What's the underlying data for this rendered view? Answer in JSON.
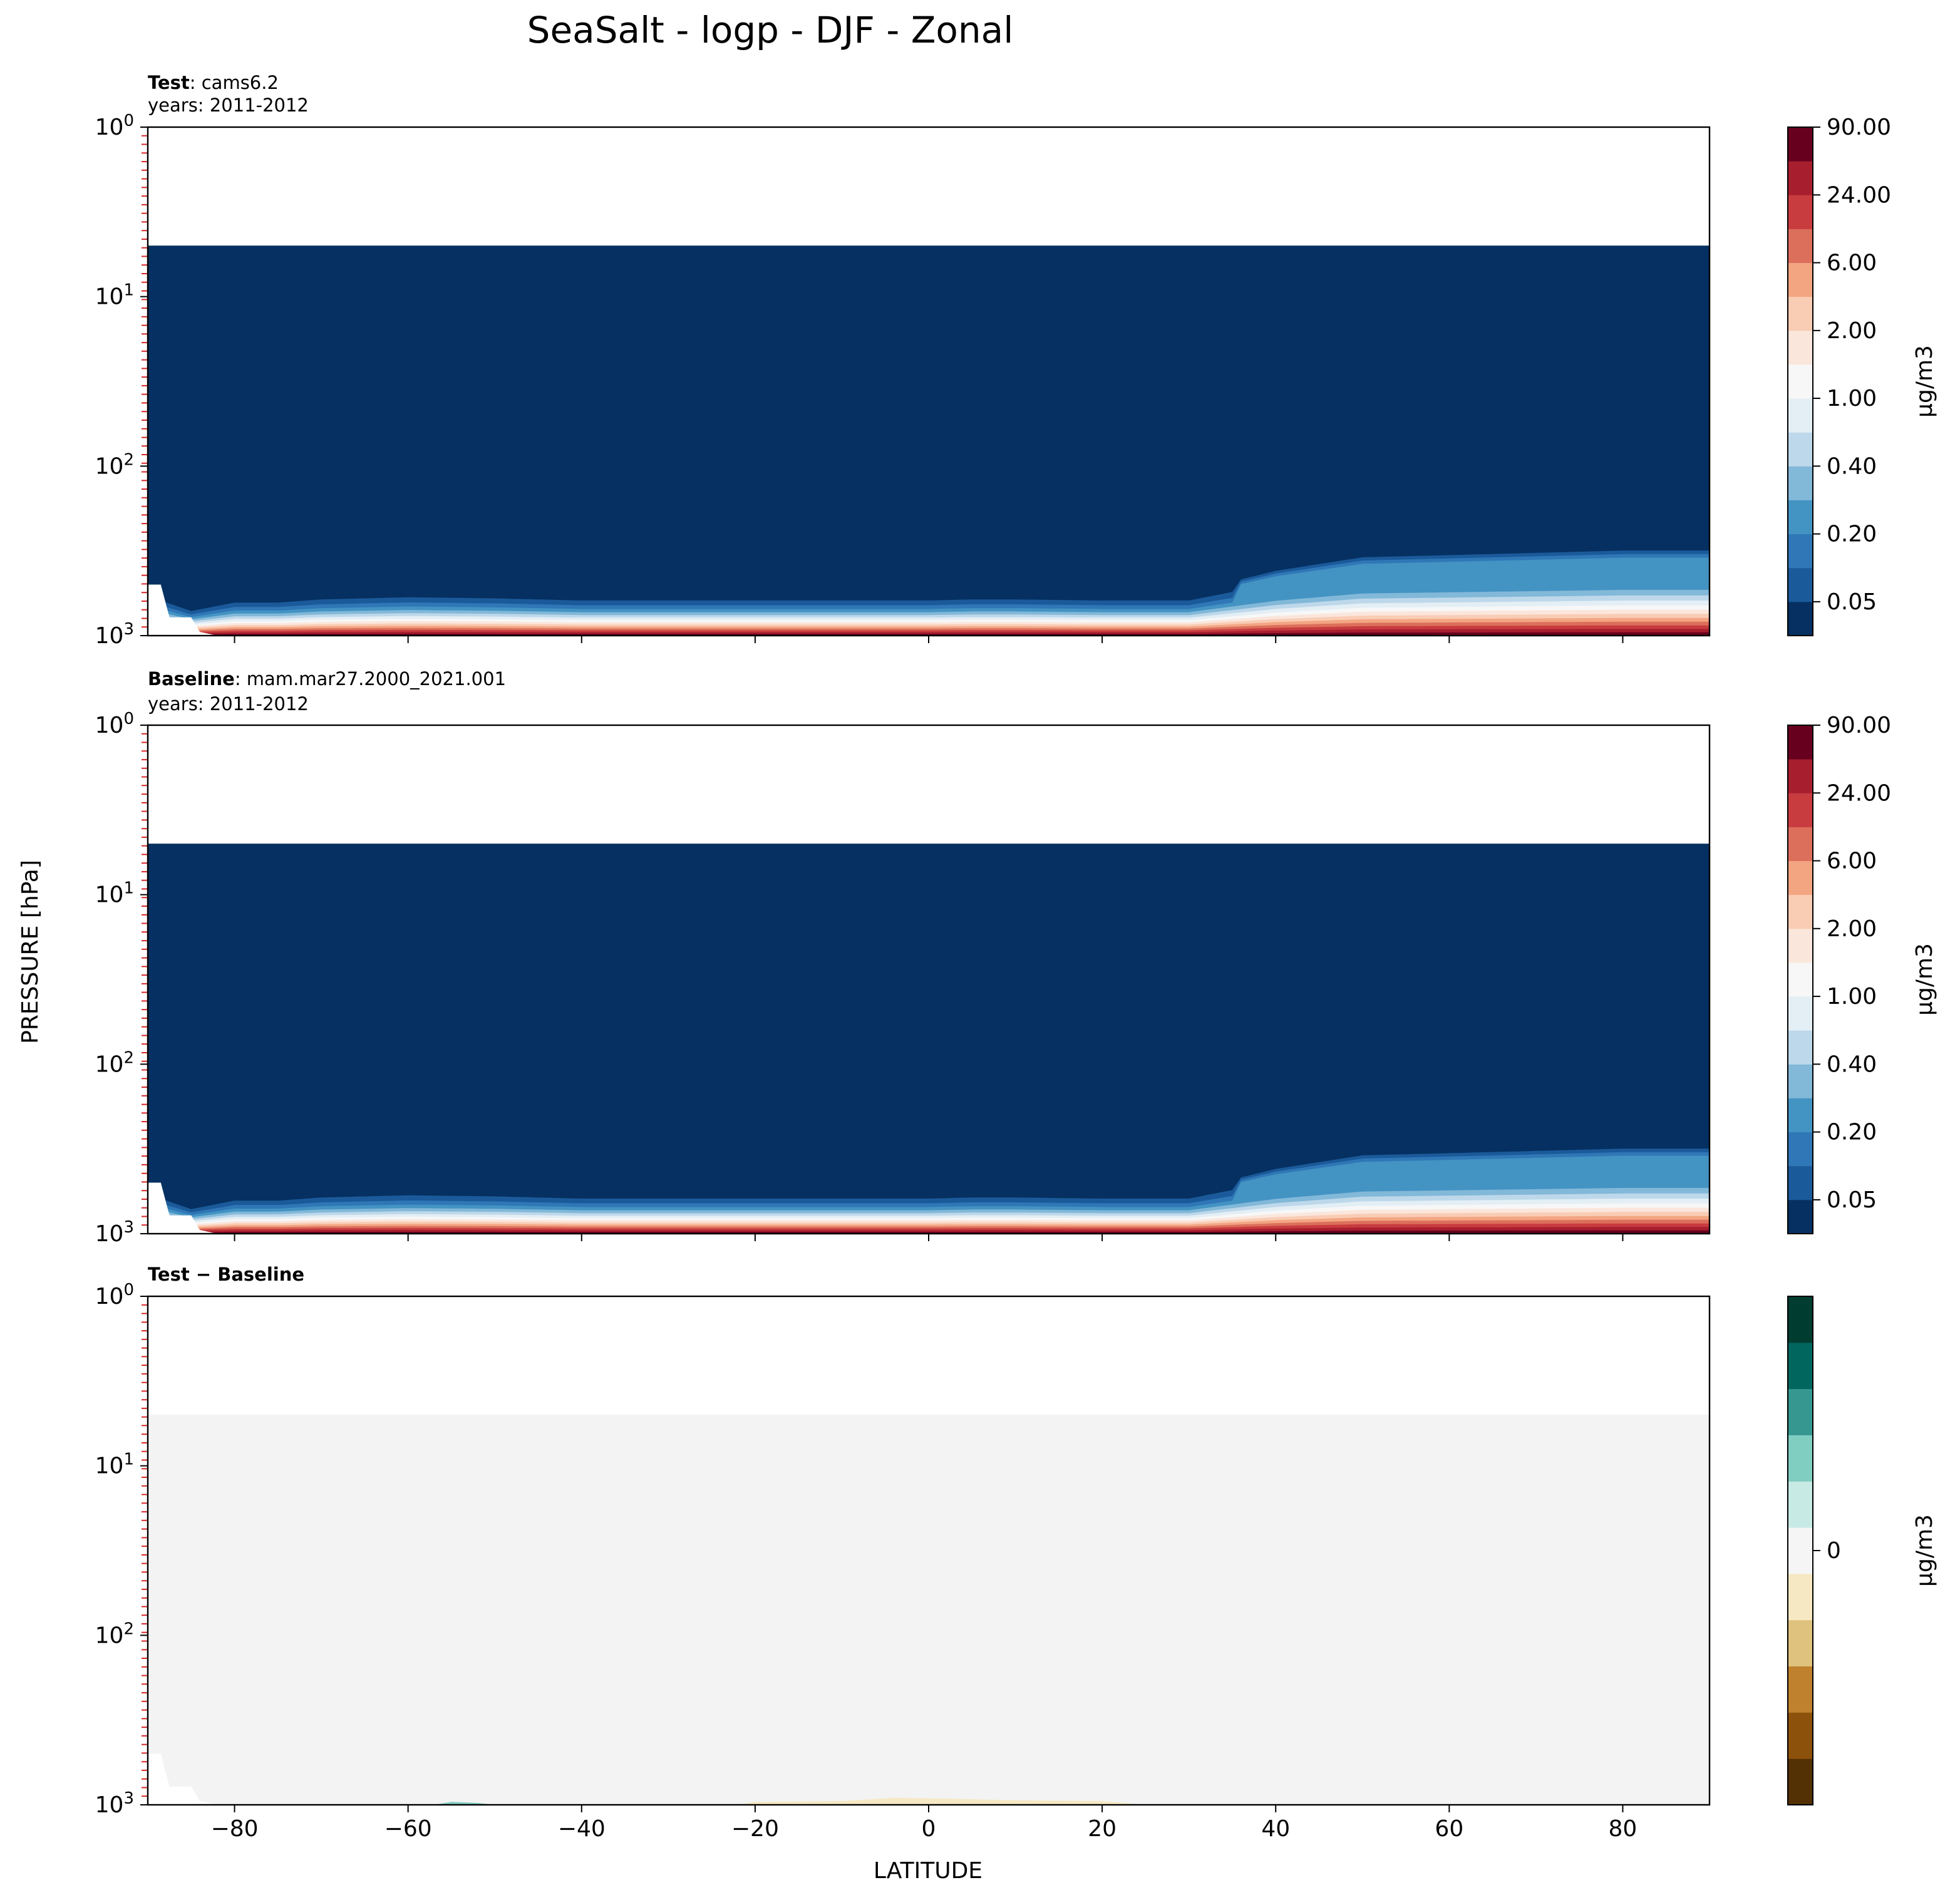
{
  "chart_data": {
    "type": "contour",
    "title": "SeaSalt - logp - DJF - Zonal",
    "xlabel": "LATITUDE",
    "ylabel": "PRESSURE [hPa]",
    "x_ticks": [
      "−80",
      "−60",
      "−40",
      "−20",
      "0",
      "20",
      "40",
      "60",
      "80"
    ],
    "xlim": [
      -90,
      90
    ],
    "ylim_hPa": [
      1000,
      1
    ],
    "y_tick_exponents": [
      "3",
      "2",
      "1",
      "0"
    ],
    "y_tick_base": "10",
    "panels": [
      {
        "id": "test",
        "label_bold": "Test",
        "label_rest": ": cams6.2",
        "subtitle": "years: 2011-2012",
        "cbar_unit": "μg/m3",
        "cbar_ticks": [
          "0.05",
          "0.20",
          "0.40",
          "1.00",
          "2.00",
          "6.00",
          "24.00",
          "90.00"
        ]
      },
      {
        "id": "baseline",
        "label_bold": "Baseline",
        "label_rest": ": mam.mar27.2000_2021.001",
        "subtitle": "years: 2011-2012",
        "cbar_unit": "μg/m3",
        "cbar_ticks": [
          "0.05",
          "0.20",
          "0.40",
          "1.00",
          "2.00",
          "6.00",
          "24.00",
          "90.00"
        ]
      },
      {
        "id": "diff",
        "label_bold": "Test − Baseline",
        "label_rest": "",
        "subtitle": "",
        "cbar_unit": "μg/m3",
        "cbar_ticks": [
          "0"
        ]
      }
    ],
    "level_colors": [
      "#053061",
      "#1b5a9a",
      "#2f77b6",
      "#4393c3",
      "#82b8d8",
      "#bdd8ea",
      "#e3eef5",
      "#f7f7f7",
      "#fbe6dc",
      "#f9ccb4",
      "#f3a582",
      "#dc6f5c",
      "#c83b3e",
      "#a71e2f",
      "#67001f"
    ],
    "diff_colors": [
      "#543005",
      "#8c510a",
      "#bf812d",
      "#dfc27d",
      "#f6e8c3",
      "#f5f5f5",
      "#c7eae5",
      "#80cdc1",
      "#35978f",
      "#01665e",
      "#003c30"
    ],
    "vertical_profile": {
      "lat": [
        -90,
        -85,
        -80,
        -75,
        -70,
        -65,
        -60,
        -50,
        -40,
        -30,
        -20,
        -10,
        -5,
        0,
        5,
        10,
        20,
        30,
        40,
        50,
        60,
        70,
        80,
        90
      ],
      "top_hPa": [
        500,
        650,
        560,
        560,
        530,
        520,
        510,
        520,
        540,
        540,
        540,
        540,
        540,
        540,
        530,
        530,
        540,
        540,
        400,
        330,
        320,
        310,
        300,
        300
      ]
    }
  }
}
